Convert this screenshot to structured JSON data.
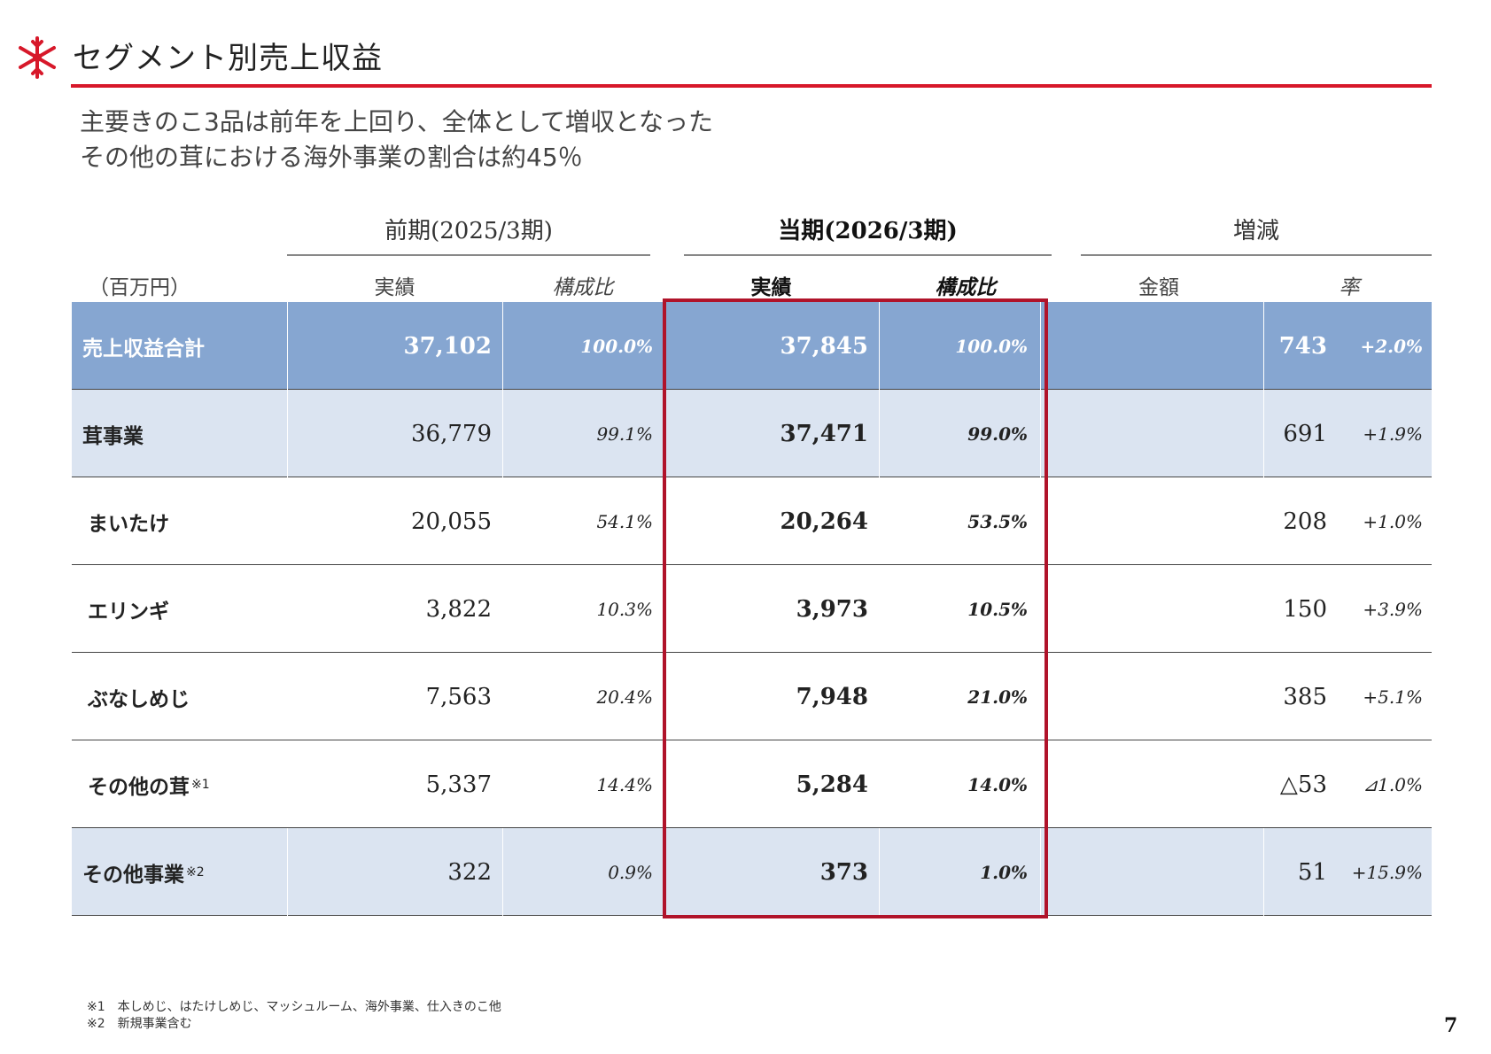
{
  "header": {
    "title": "セグメント別売上収益",
    "logo_icon": "snowflake-icon",
    "accent_color": "#d7182a"
  },
  "subtitle": {
    "line1": "主要きのこ3品は前年を上回り、全体として増収となった",
    "line2": "その他の茸における海外事業の割合は約45％"
  },
  "table": {
    "unit": "（百万円）",
    "periods": {
      "previous": "前期(2025/3期)",
      "current": "当期(2026/3期)",
      "change": "増減"
    },
    "columns": {
      "prev_actual": "実績",
      "prev_ratio": "構成比",
      "cur_actual": "実績",
      "cur_ratio": "構成比",
      "change_amount": "金額",
      "change_rate": "率"
    },
    "rows": [
      {
        "label": "売上収益合計",
        "note": "",
        "prev": "37,102",
        "prev_ratio": "100.0%",
        "cur": "37,845",
        "cur_ratio": "100.0%",
        "amount": "743",
        "rate": "+2.0%"
      },
      {
        "label": "茸事業",
        "note": "",
        "prev": "36,779",
        "prev_ratio": "99.1%",
        "cur": "37,471",
        "cur_ratio": "99.0%",
        "amount": "691",
        "rate": "+1.9%"
      },
      {
        "label": "まいたけ",
        "note": "",
        "prev": "20,055",
        "prev_ratio": "54.1%",
        "cur": "20,264",
        "cur_ratio": "53.5%",
        "amount": "208",
        "rate": "+1.0%"
      },
      {
        "label": "エリンギ",
        "note": "",
        "prev": "3,822",
        "prev_ratio": "10.3%",
        "cur": "3,973",
        "cur_ratio": "10.5%",
        "amount": "150",
        "rate": "+3.9%"
      },
      {
        "label": "ぶなしめじ",
        "note": "",
        "prev": "7,563",
        "prev_ratio": "20.4%",
        "cur": "7,948",
        "cur_ratio": "21.0%",
        "amount": "385",
        "rate": "+5.1%"
      },
      {
        "label": "その他の茸",
        "note": "※1",
        "prev": "5,337",
        "prev_ratio": "14.4%",
        "cur": "5,284",
        "cur_ratio": "14.0%",
        "amount": "△53",
        "rate": "⊿1.0%"
      },
      {
        "label": "その他事業",
        "note": "※2",
        "prev": "322",
        "prev_ratio": "0.9%",
        "cur": "373",
        "cur_ratio": "1.0%",
        "amount": "51",
        "rate": "+15.9%"
      }
    ]
  },
  "footnotes": {
    "note1": "※1　本しめじ、はたけしめじ、マッシュルーム、海外事業、仕入きのこ他",
    "note2": "※2　新規事業含む"
  },
  "page_number": "7"
}
